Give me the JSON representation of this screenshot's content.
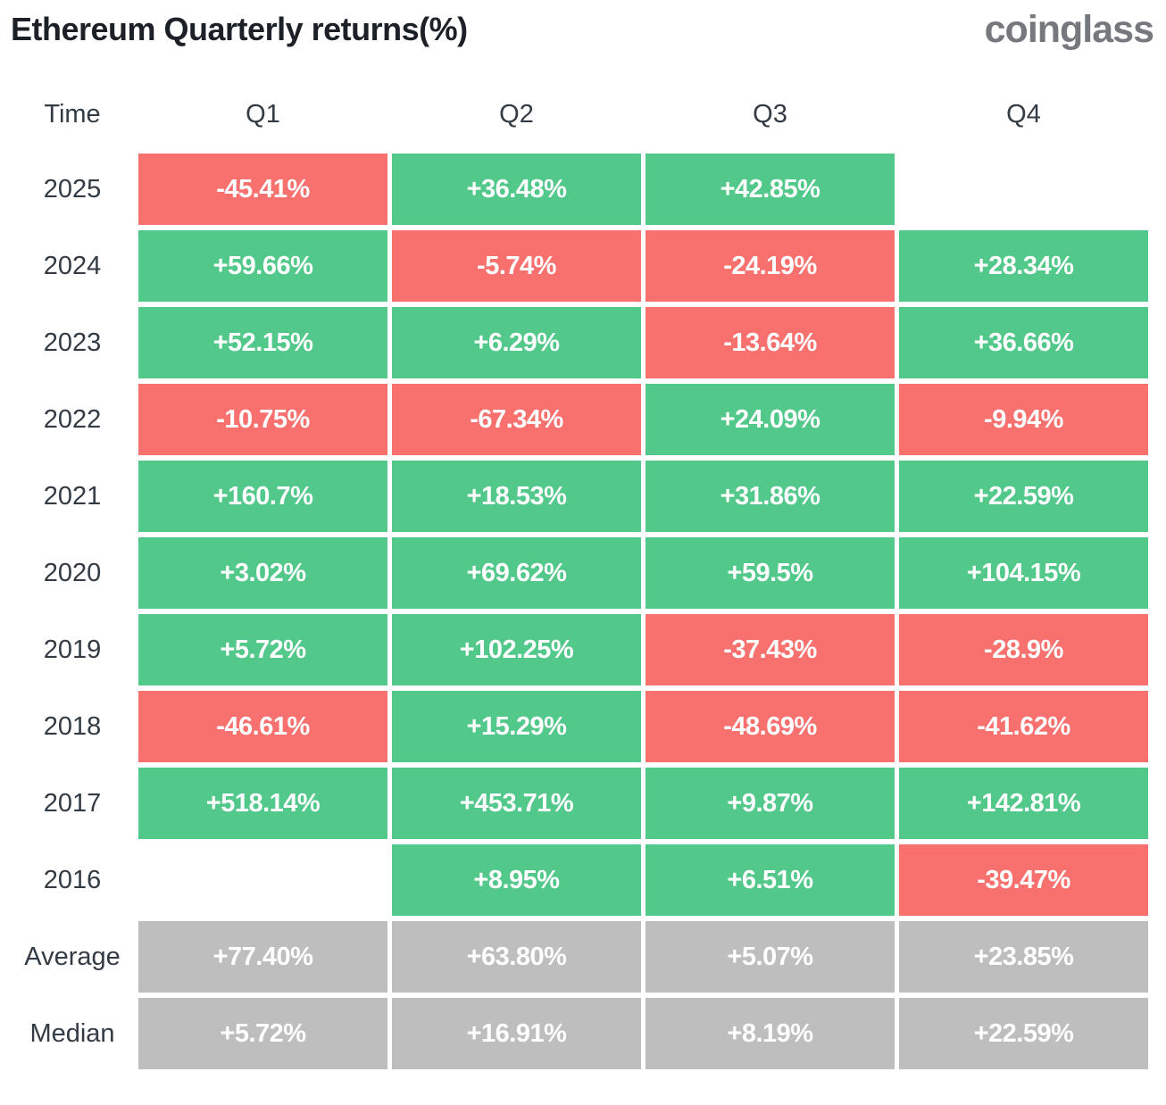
{
  "header": {
    "title": "Ethereum Quarterly returns(%)",
    "logo": "coinglass"
  },
  "colors": {
    "positive": "#52c88b",
    "negative": "#f8716e",
    "aggregate": "#bebebe",
    "logo": "#75797e"
  },
  "table": {
    "columns": [
      "Time",
      "Q1",
      "Q2",
      "Q3",
      "Q4"
    ],
    "rows": [
      {
        "label": "2025",
        "aggregate": false,
        "cells": [
          "-45.41%",
          "+36.48%",
          "+42.85%",
          ""
        ]
      },
      {
        "label": "2024",
        "aggregate": false,
        "cells": [
          "+59.66%",
          "-5.74%",
          "-24.19%",
          "+28.34%"
        ]
      },
      {
        "label": "2023",
        "aggregate": false,
        "cells": [
          "+52.15%",
          "+6.29%",
          "-13.64%",
          "+36.66%"
        ]
      },
      {
        "label": "2022",
        "aggregate": false,
        "cells": [
          "-10.75%",
          "-67.34%",
          "+24.09%",
          "-9.94%"
        ]
      },
      {
        "label": "2021",
        "aggregate": false,
        "cells": [
          "+160.7%",
          "+18.53%",
          "+31.86%",
          "+22.59%"
        ]
      },
      {
        "label": "2020",
        "aggregate": false,
        "cells": [
          "+3.02%",
          "+69.62%",
          "+59.5%",
          "+104.15%"
        ]
      },
      {
        "label": "2019",
        "aggregate": false,
        "cells": [
          "+5.72%",
          "+102.25%",
          "-37.43%",
          "-28.9%"
        ]
      },
      {
        "label": "2018",
        "aggregate": false,
        "cells": [
          "-46.61%",
          "+15.29%",
          "-48.69%",
          "-41.62%"
        ]
      },
      {
        "label": "2017",
        "aggregate": false,
        "cells": [
          "+518.14%",
          "+453.71%",
          "+9.87%",
          "+142.81%"
        ]
      },
      {
        "label": "2016",
        "aggregate": false,
        "cells": [
          "",
          "+8.95%",
          "+6.51%",
          "-39.47%"
        ]
      },
      {
        "label": "Average",
        "aggregate": true,
        "cells": [
          "+77.40%",
          "+63.80%",
          "+5.07%",
          "+23.85%"
        ]
      },
      {
        "label": "Median",
        "aggregate": true,
        "cells": [
          "+5.72%",
          "+16.91%",
          "+8.19%",
          "+22.59%"
        ]
      }
    ]
  },
  "chart_data": {
    "type": "heatmap",
    "title": "Ethereum Quarterly returns(%)",
    "columns": [
      "Q1",
      "Q2",
      "Q3",
      "Q4"
    ],
    "rows": [
      "2025",
      "2024",
      "2023",
      "2022",
      "2021",
      "2020",
      "2019",
      "2018",
      "2017",
      "2016",
      "Average",
      "Median"
    ],
    "values": [
      [
        -45.41,
        36.48,
        42.85,
        null
      ],
      [
        59.66,
        -5.74,
        -24.19,
        28.34
      ],
      [
        52.15,
        6.29,
        -13.64,
        36.66
      ],
      [
        -10.75,
        -67.34,
        24.09,
        -9.94
      ],
      [
        160.7,
        18.53,
        31.86,
        22.59
      ],
      [
        3.02,
        69.62,
        59.5,
        104.15
      ],
      [
        5.72,
        102.25,
        -37.43,
        -28.9
      ],
      [
        -46.61,
        15.29,
        -48.69,
        -41.62
      ],
      [
        518.14,
        453.71,
        9.87,
        142.81
      ],
      [
        null,
        8.95,
        6.51,
        -39.47
      ],
      [
        77.4,
        63.8,
        5.07,
        23.85
      ],
      [
        5.72,
        16.91,
        8.19,
        22.59
      ]
    ],
    "color_coding": "green = positive return, red = negative return, gray = Average/Median aggregate rows",
    "unit": "percent"
  }
}
